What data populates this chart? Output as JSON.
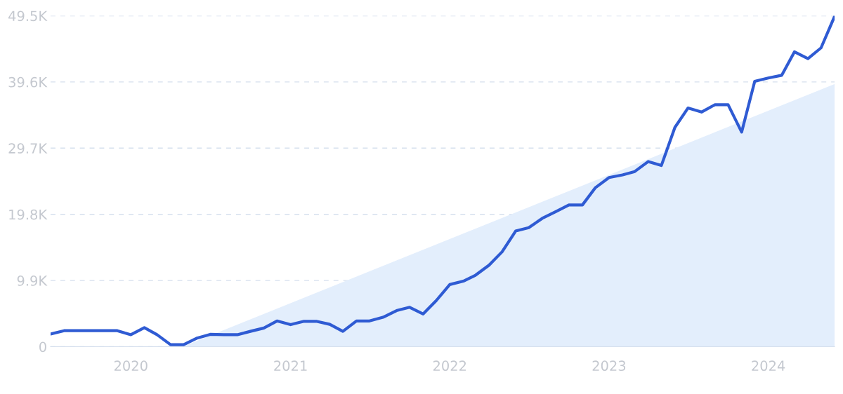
{
  "chart_data": {
    "type": "line",
    "x": [
      "2019-07",
      "2019-08",
      "2019-09",
      "2019-10",
      "2019-11",
      "2019-12",
      "2020-01",
      "2020-02",
      "2020-03",
      "2020-04",
      "2020-05",
      "2020-06",
      "2020-07",
      "2020-08",
      "2020-09",
      "2020-10",
      "2020-11",
      "2020-12",
      "2021-01",
      "2021-02",
      "2021-03",
      "2021-04",
      "2021-05",
      "2021-06",
      "2021-07",
      "2021-08",
      "2021-09",
      "2021-10",
      "2021-11",
      "2021-12",
      "2022-01",
      "2022-02",
      "2022-03",
      "2022-04",
      "2022-05",
      "2022-06",
      "2022-07",
      "2022-08",
      "2022-09",
      "2022-10",
      "2022-11",
      "2022-12",
      "2023-01",
      "2023-02",
      "2023-03",
      "2023-04",
      "2023-05",
      "2023-06",
      "2023-07",
      "2023-08",
      "2023-09",
      "2023-10",
      "2023-11",
      "2023-12",
      "2024-01",
      "2024-02",
      "2024-03",
      "2024-04",
      "2024-05",
      "2024-06"
    ],
    "series": [
      {
        "type": "area",
        "color": "#e3eefc",
        "x": [
          "2020-05",
          "2024-06"
        ],
        "values": [
          0,
          39.2
        ]
      },
      {
        "color": "#2f5bd3",
        "values": [
          1.9,
          2.4,
          2.4,
          2.4,
          2.4,
          2.4,
          1.8,
          2.85,
          1.8,
          0.3,
          0.3,
          1.3,
          1.85,
          1.8,
          1.8,
          2.3,
          2.8,
          3.85,
          3.3,
          3.8,
          3.8,
          3.35,
          2.3,
          3.85,
          3.85,
          4.4,
          5.4,
          5.9,
          4.9,
          6.9,
          9.3,
          9.8,
          10.7,
          12.2,
          14.2,
          17.3,
          17.8,
          19.2,
          20.2,
          21.2,
          21.2,
          23.8,
          25.3,
          25.7,
          26.2,
          27.7,
          27.1,
          32.8,
          35.7,
          35.1,
          36.2,
          36.2,
          32.1,
          39.7,
          40.2,
          40.6,
          44.1,
          43.1,
          44.7,
          49.4
        ]
      }
    ],
    "xlim": [
      "2019-07",
      "2024-06"
    ],
    "xticks": [
      {
        "value": "2020-01",
        "label": "2020"
      },
      {
        "value": "2021-01",
        "label": "2021"
      },
      {
        "value": "2022-01",
        "label": "2022"
      },
      {
        "value": "2023-01",
        "label": "2023"
      },
      {
        "value": "2024-01",
        "label": "2024"
      }
    ],
    "ylim": [
      0,
      49.5
    ],
    "yticks": [
      {
        "value": 0,
        "label": "0"
      },
      {
        "value": 9.9,
        "label": "9.9K"
      },
      {
        "value": 19.8,
        "label": "19.8K"
      },
      {
        "value": 29.7,
        "label": "29.7K"
      },
      {
        "value": 39.6,
        "label": "39.6K"
      },
      {
        "value": 49.5,
        "label": "49.5K"
      }
    ],
    "grid": "y"
  }
}
